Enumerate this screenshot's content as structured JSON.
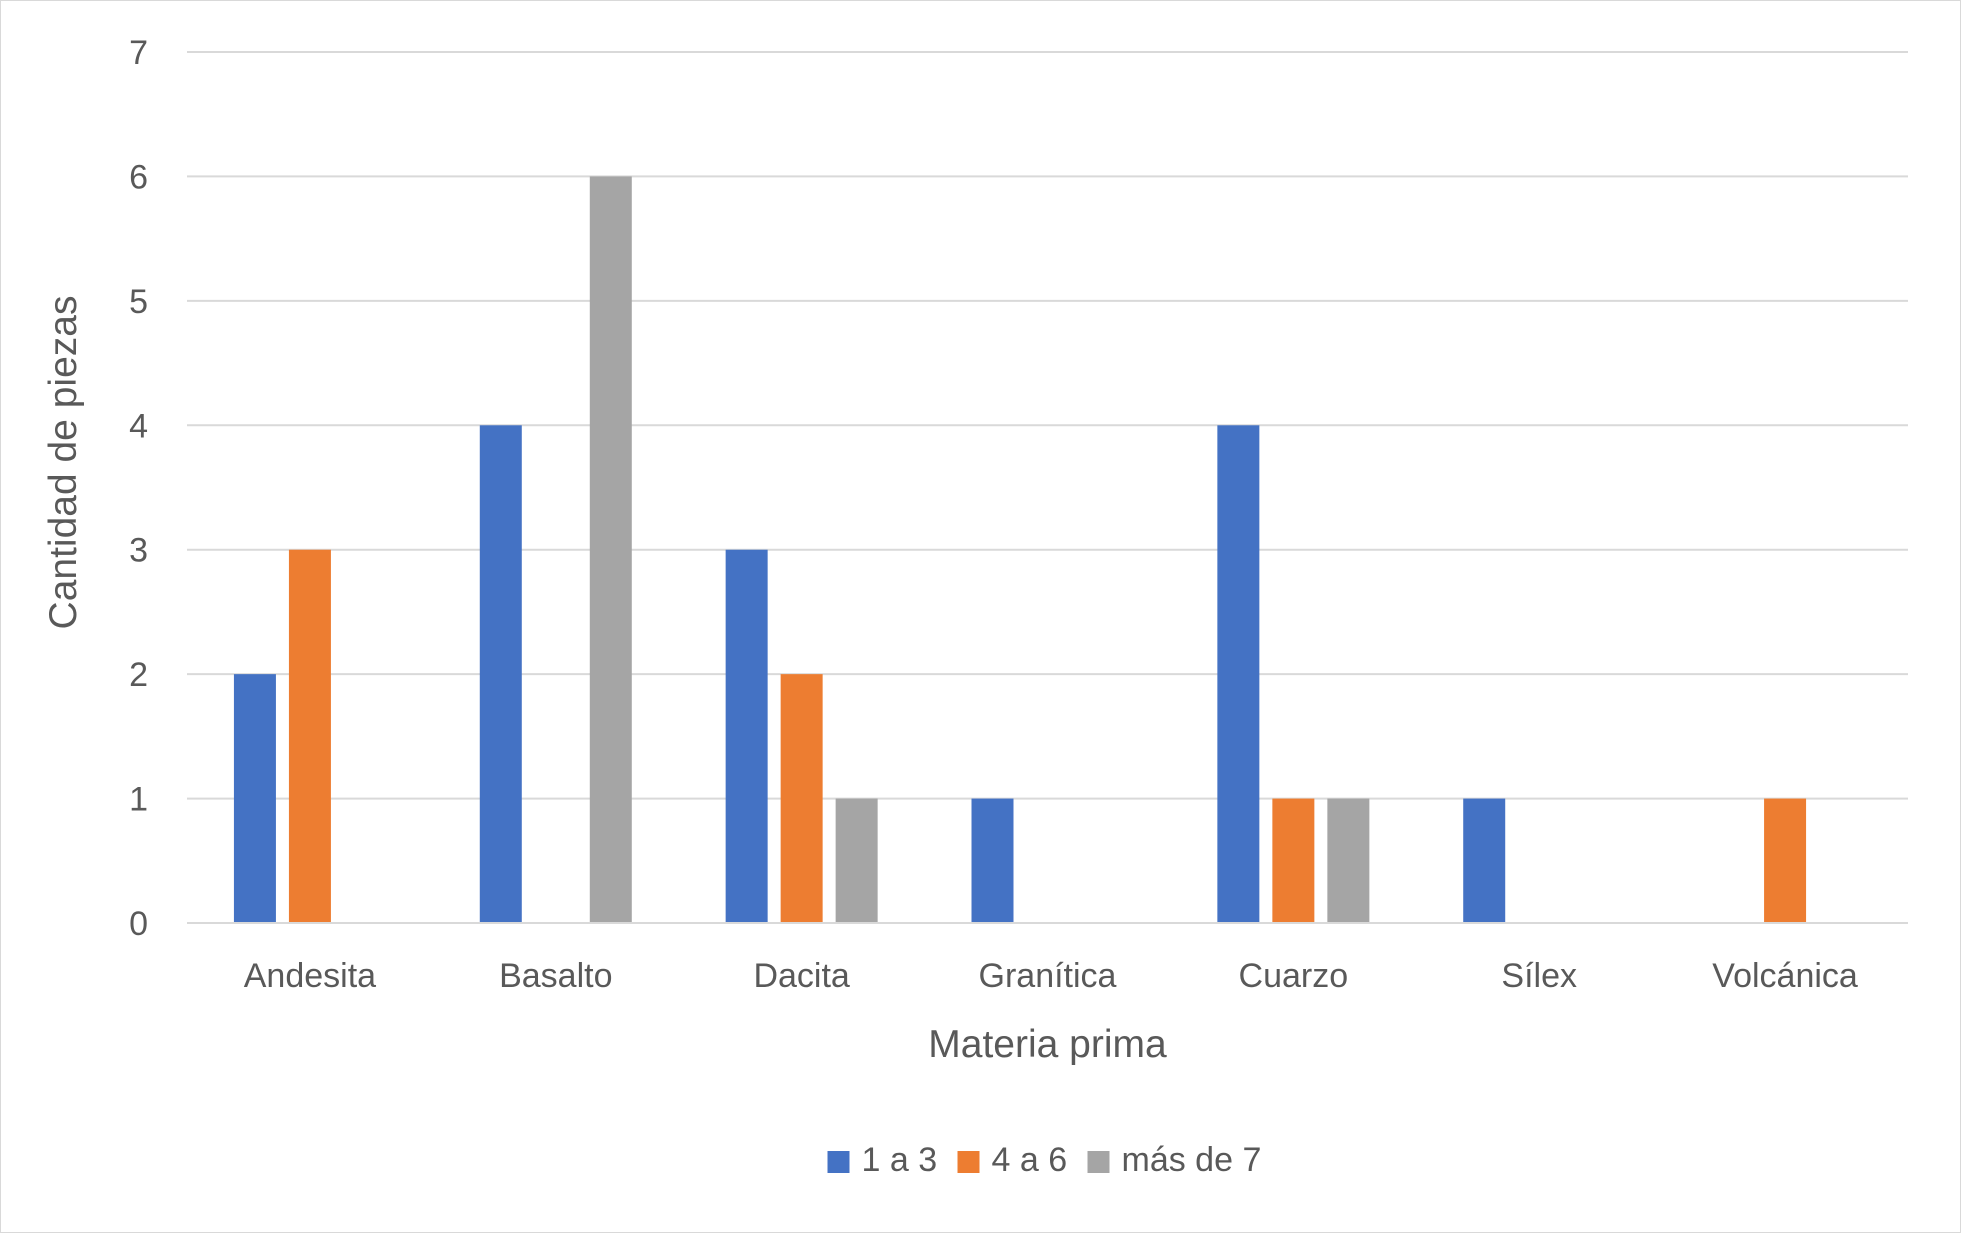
{
  "chart_data": {
    "type": "bar",
    "title": "",
    "xlabel": "Materia prima",
    "ylabel": "Cantidad de piezas",
    "ylim": [
      0,
      7
    ],
    "yticks": [
      0,
      1,
      2,
      3,
      4,
      5,
      6,
      7
    ],
    "grid": true,
    "legend_position": "bottom",
    "categories": [
      "Andesita",
      "Basalto",
      "Dacita",
      "Granítica",
      "Cuarzo",
      "Sílex",
      "Volcánica"
    ],
    "series": [
      {
        "name": "1 a 3",
        "color": "#4472c4",
        "values": [
          2,
          4,
          3,
          1,
          4,
          1,
          0
        ]
      },
      {
        "name": "4 a 6",
        "color": "#ed7d31",
        "values": [
          3,
          0,
          2,
          0,
          1,
          0,
          1
        ]
      },
      {
        "name": "más de 7",
        "color": "#a5a5a5",
        "values": [
          0,
          6,
          1,
          0,
          1,
          0,
          0
        ]
      }
    ]
  }
}
